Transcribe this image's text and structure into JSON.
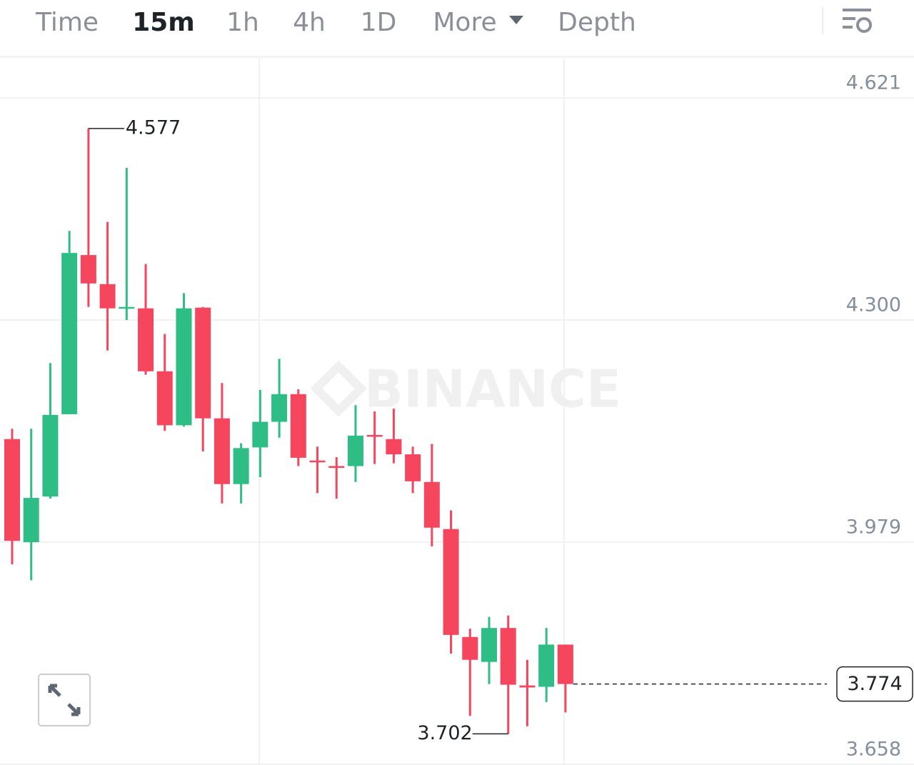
{
  "toolbar": {
    "tabs": [
      "Time",
      "15m",
      "1h",
      "4h",
      "1D",
      "More",
      "Depth"
    ],
    "active_tab": 1
  },
  "chart_data": {
    "type": "candlestick",
    "watermark": "BINANCE",
    "open": [
      4.128,
      3.979,
      4.045,
      4.164,
      4.394,
      4.352,
      4.317,
      4.317,
      4.226,
      4.148,
      4.318,
      4.158,
      4.063,
      4.116,
      4.153,
      4.193,
      4.097,
      4.089,
      4.089,
      4.134,
      4.128,
      4.106,
      4.066,
      3.998,
      3.842,
      3.806,
      3.855,
      3.772,
      3.77,
      3.831
    ],
    "high": [
      4.143,
      4.143,
      4.238,
      4.429,
      4.577,
      4.442,
      4.52,
      4.381,
      4.28,
      4.339,
      4.319,
      4.209,
      4.122,
      4.199,
      4.244,
      4.2,
      4.117,
      4.102,
      4.177,
      4.168,
      4.172,
      4.117,
      4.121,
      4.025,
      3.854,
      3.871,
      3.873,
      3.809,
      3.855,
      3.831
    ],
    "low": [
      3.947,
      3.924,
      4.042,
      4.164,
      4.319,
      4.256,
      4.3,
      4.221,
      4.14,
      4.146,
      4.11,
      4.035,
      4.035,
      4.073,
      4.13,
      4.089,
      4.05,
      4.042,
      4.066,
      4.092,
      4.093,
      4.05,
      3.973,
      3.818,
      3.728,
      3.774,
      3.702,
      3.713,
      3.748,
      3.733
    ],
    "close": [
      3.981,
      4.043,
      4.163,
      4.397,
      4.353,
      4.317,
      4.319,
      4.226,
      4.148,
      4.317,
      4.158,
      4.063,
      4.115,
      4.153,
      4.193,
      4.101,
      4.095,
      4.087,
      4.133,
      4.132,
      4.106,
      4.067,
      4.0,
      3.845,
      3.809,
      3.855,
      3.773,
      3.769,
      3.831,
      3.774
    ],
    "up_color": "#2ebd85",
    "down_color": "#f6465d",
    "ylim": [
      3.658,
      4.678
    ],
    "yticks": [
      4.621,
      {
        "value": 4.3,
        "label": "4.300"
      },
      3.979,
      3.658
    ],
    "grid": true,
    "high_label": 4.577,
    "low_label": 3.702,
    "last_price": 3.774
  }
}
